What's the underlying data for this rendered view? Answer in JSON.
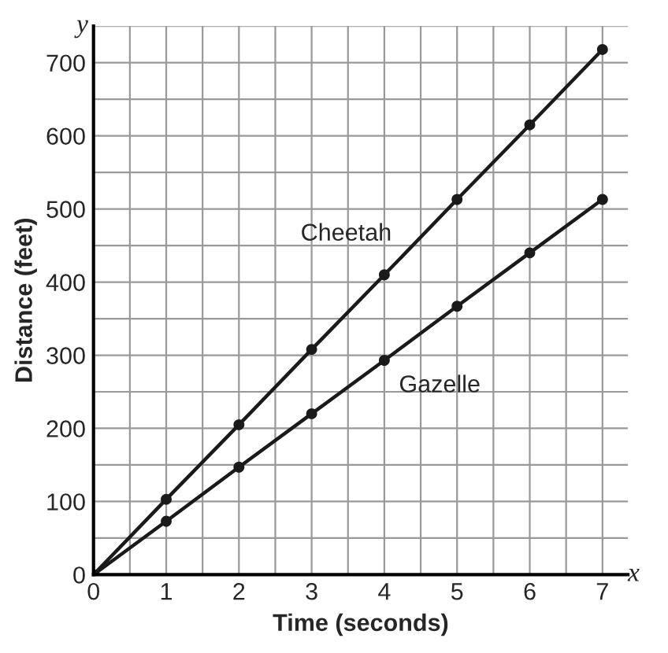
{
  "chart_data": {
    "type": "line",
    "xlabel": "Time (seconds)",
    "ylabel": "Distance (feet)",
    "x": [
      0,
      1,
      2,
      3,
      4,
      5,
      6,
      7
    ],
    "series": [
      {
        "name": "Cheetah",
        "color": "#1a1a1a",
        "values": [
          0,
          103,
          205,
          308,
          410,
          513,
          615,
          718
        ]
      },
      {
        "name": "Gazelle",
        "color": "#1a1a1a",
        "values": [
          0,
          73,
          147,
          220,
          293,
          367,
          440,
          513
        ]
      }
    ],
    "xlim": [
      0,
      7.35
    ],
    "ylim": [
      0,
      750
    ],
    "xticks": [
      0,
      1,
      2,
      3,
      4,
      5,
      6,
      7
    ],
    "yticks": [
      0,
      100,
      200,
      300,
      400,
      500,
      600,
      700
    ],
    "annotations": [
      "x",
      "y"
    ],
    "grid": true,
    "marker": "circle",
    "line_style": "solid",
    "legend": false
  }
}
